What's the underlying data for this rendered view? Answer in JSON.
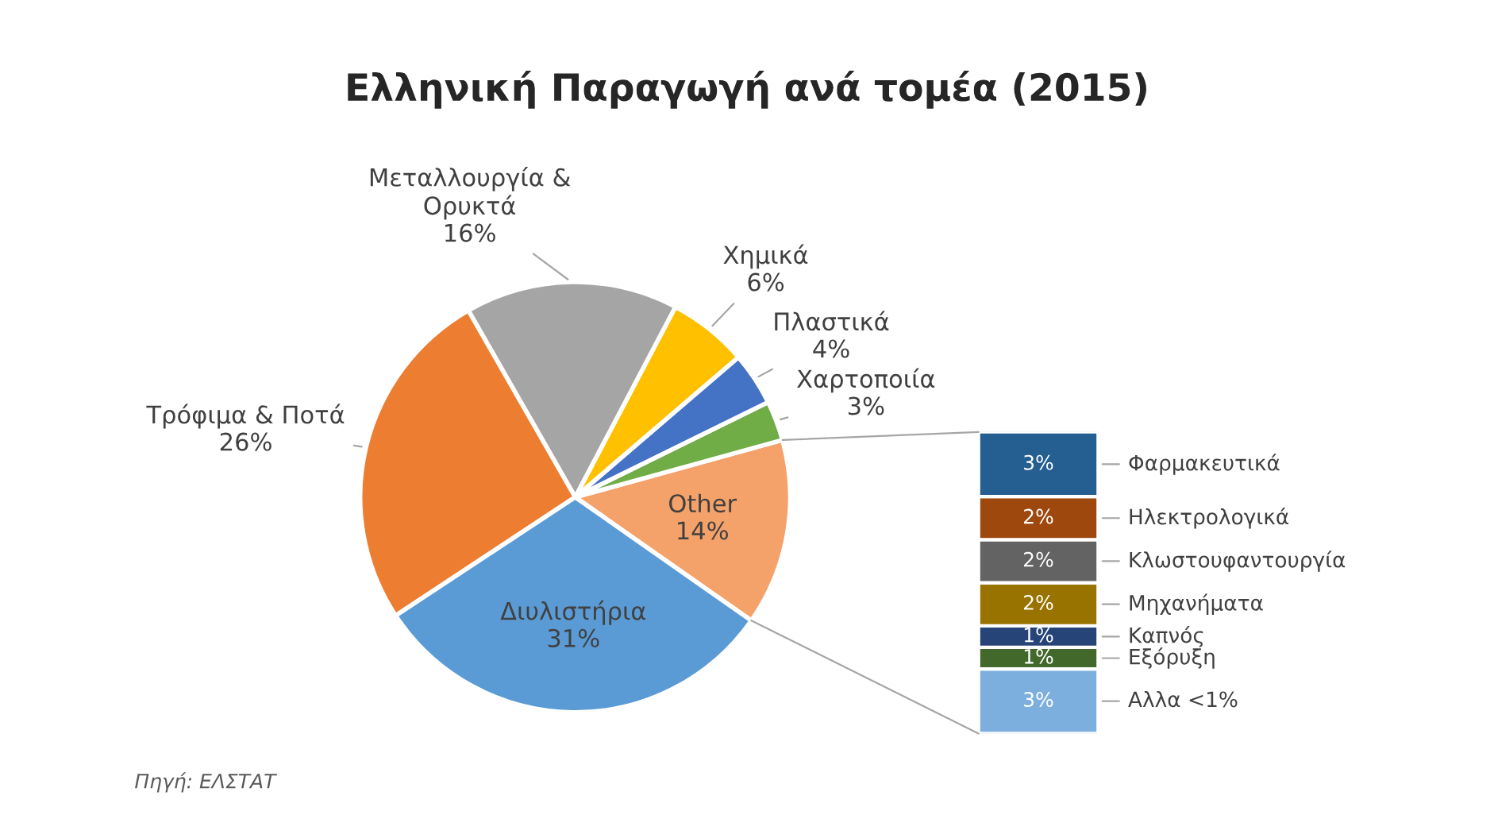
{
  "chart_data": [
    {
      "type": "pie",
      "title": "Ελληνική Παραγωγή ανά τομέα (2015)",
      "categories": [
        "Other",
        "Χαρτοποιία",
        "Πλαστικά",
        "Χημικά",
        "Μεταλλουργία &\nΟρυκτά",
        "Τρόφιμα & Ποτά",
        "Διυλιστήρια"
      ],
      "values": [
        14,
        3,
        4,
        6,
        16,
        26,
        31
      ],
      "value_labels": [
        "14%",
        "3%",
        "4%",
        "6%",
        "16%",
        "26%",
        "31%"
      ],
      "colors": [
        "#f4a26a",
        "#70ad47",
        "#4472c4",
        "#ffc000",
        "#a5a5a5",
        "#ed7d31",
        "#5b9bd5"
      ],
      "annotations": [
        "Πηγή: ΕΛΣΤΑΤ"
      ]
    },
    {
      "type": "bar",
      "stacked": true,
      "categories": [
        null
      ],
      "series": [
        {
          "name": "Αλλα <1%",
          "color": "#7cafdd",
          "values": [
            3
          ],
          "value_labels": [
            "3%"
          ]
        },
        {
          "name": "Εξόρυξη",
          "color": "#43682b",
          "values": [
            1
          ],
          "value_labels": [
            "1%"
          ]
        },
        {
          "name": "Καπνός",
          "color": "#264478",
          "values": [
            1
          ],
          "value_labels": [
            "1%"
          ]
        },
        {
          "name": "Μηχανήματα",
          "color": "#997300",
          "values": [
            2
          ],
          "value_labels": [
            "2%"
          ]
        },
        {
          "name": "Κλωστουφαντουργία",
          "color": "#636363",
          "values": [
            2
          ],
          "value_labels": [
            "2%"
          ]
        },
        {
          "name": "Ηλεκτρολογικά",
          "color": "#9e480e",
          "values": [
            2
          ],
          "value_labels": [
            "2%"
          ]
        },
        {
          "name": "Φαρμακευτικά",
          "color": "#255e91",
          "values": [
            3
          ],
          "value_labels": [
            "3%"
          ]
        }
      ]
    }
  ]
}
